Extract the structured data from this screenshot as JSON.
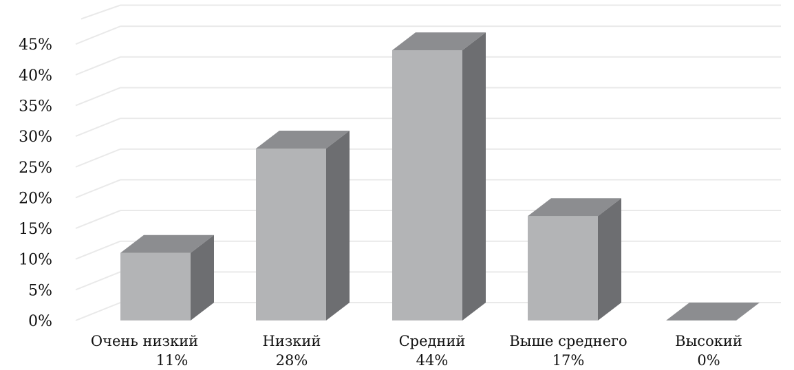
{
  "chart_data": {
    "type": "bar",
    "categories": [
      "Очень низкий",
      "Низкий",
      "Средний",
      "Выше среднего",
      "Высокий"
    ],
    "values": [
      11,
      28,
      44,
      17,
      0
    ],
    "value_labels": [
      "11%",
      "28%",
      "44%",
      "17%",
      "0%"
    ],
    "yticks": [
      "0%",
      "5%",
      "10%",
      "15%",
      "20%",
      "25%",
      "30%",
      "35%",
      "40%",
      "45%"
    ],
    "ylim": [
      0,
      45
    ],
    "grid": true,
    "three_d": true,
    "legend": "none",
    "colors": {
      "front": "#b3b4b6",
      "top": "#8c8d90",
      "side": "#6d6e71",
      "grid": "#e9e9e9"
    }
  }
}
